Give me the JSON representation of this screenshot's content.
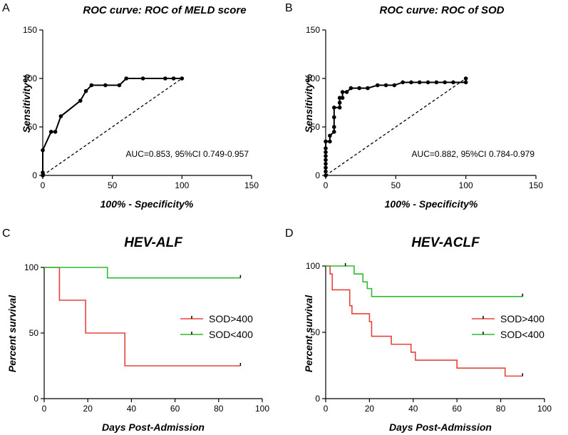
{
  "chart_data": [
    {
      "panel": "A",
      "type": "line",
      "title": "ROC curve: ROC of MELD score",
      "xlabel": "100% - Specificity%",
      "ylabel": "Sensitivity%",
      "xlim": [
        0,
        150
      ],
      "ylim": [
        0,
        150
      ],
      "xticks": [
        "0",
        "50",
        "100",
        "150"
      ],
      "yticks": [
        "0",
        "50",
        "100",
        "150"
      ],
      "series": [
        {
          "name": "ROC",
          "x": [
            0,
            0,
            0,
            6,
            9,
            13,
            27,
            31,
            35,
            45,
            55,
            60,
            72,
            88,
            94,
            100
          ],
          "y": [
            0,
            3,
            26,
            45,
            45,
            61,
            77,
            87,
            93,
            93,
            93,
            100,
            100,
            100,
            100,
            100
          ]
        },
        {
          "name": "Reference",
          "x": [
            0,
            100
          ],
          "y": [
            0,
            100
          ],
          "dashed": true
        }
      ],
      "annotation": "AUC=0.853, 95%CI 0.749-0.957"
    },
    {
      "panel": "B",
      "type": "line",
      "title": "ROC curve: ROC of SOD",
      "xlabel": "100% - Specificity%",
      "ylabel": "Sensitivity%",
      "xlim": [
        0,
        150
      ],
      "ylim": [
        0,
        150
      ],
      "xticks": [
        "0",
        "50",
        "100",
        "150"
      ],
      "yticks": [
        "0",
        "50",
        "100",
        "150"
      ],
      "series": [
        {
          "name": "ROC",
          "x": [
            0,
            0,
            0,
            0,
            0,
            0,
            0,
            0,
            0,
            3,
            3,
            6,
            6,
            6,
            6,
            10,
            10,
            10,
            12,
            12,
            15,
            18,
            24,
            30,
            37,
            43,
            49,
            55,
            61,
            67,
            73,
            79,
            85,
            91,
            100,
            100
          ],
          "y": [
            0,
            4,
            8,
            12,
            16,
            20,
            24,
            28,
            35,
            35,
            41,
            45,
            50,
            60,
            70,
            70,
            75,
            80,
            80,
            86,
            86,
            90,
            90,
            90,
            93,
            93,
            93,
            96,
            96,
            96,
            96,
            96,
            96,
            96,
            96,
            100
          ]
        },
        {
          "name": "Reference",
          "x": [
            0,
            100
          ],
          "y": [
            0,
            100
          ],
          "dashed": true
        }
      ],
      "annotation": "AUC=0.882, 95%CI 0.784-0.979"
    },
    {
      "panel": "C",
      "type": "line",
      "step": true,
      "title": "HEV-ALF",
      "xlabel": "Days Post-Admission",
      "ylabel": "Percent survival",
      "xlim": [
        0,
        100
      ],
      "ylim": [
        0,
        100
      ],
      "xticks": [
        "0",
        "20",
        "40",
        "60",
        "80",
        "100"
      ],
      "yticks": [
        "0",
        "50",
        "100"
      ],
      "series": [
        {
          "name": "SOD>400",
          "color": "#e8433b",
          "x": [
            0,
            7,
            19,
            37,
            90
          ],
          "y": [
            100,
            75,
            50,
            25,
            25
          ],
          "censor": [
            90
          ]
        },
        {
          "name": "SOD<400",
          "color": "#2fbb2f",
          "x": [
            0,
            29,
            90
          ],
          "y": [
            100,
            92,
            92
          ],
          "censor": [
            90
          ]
        }
      ],
      "legend_position": "center-right"
    },
    {
      "panel": "D",
      "type": "line",
      "step": true,
      "title": "HEV-ACLF",
      "xlabel": "Days Post-Admission",
      "ylabel": "Percent survival",
      "xlim": [
        0,
        100
      ],
      "ylim": [
        0,
        100
      ],
      "xticks": [
        "0",
        "20",
        "40",
        "60",
        "80",
        "100"
      ],
      "yticks": [
        "0",
        "50",
        "100"
      ],
      "series": [
        {
          "name": "SOD>400",
          "color": "#e8433b",
          "x": [
            0,
            2,
            3,
            11,
            12,
            20,
            21,
            30,
            39,
            41,
            60,
            82,
            90
          ],
          "y": [
            100,
            94,
            82,
            70,
            64,
            58,
            47,
            41,
            35,
            29,
            23,
            17,
            17
          ],
          "censor": [
            90
          ]
        },
        {
          "name": "SOD<400",
          "color": "#2fbb2f",
          "x": [
            0,
            13,
            17,
            19,
            21,
            25,
            90
          ],
          "y": [
            100,
            94,
            88,
            83,
            77,
            77,
            77
          ],
          "censor": [
            9,
            90
          ]
        }
      ],
      "legend_position": "center-right"
    }
  ]
}
